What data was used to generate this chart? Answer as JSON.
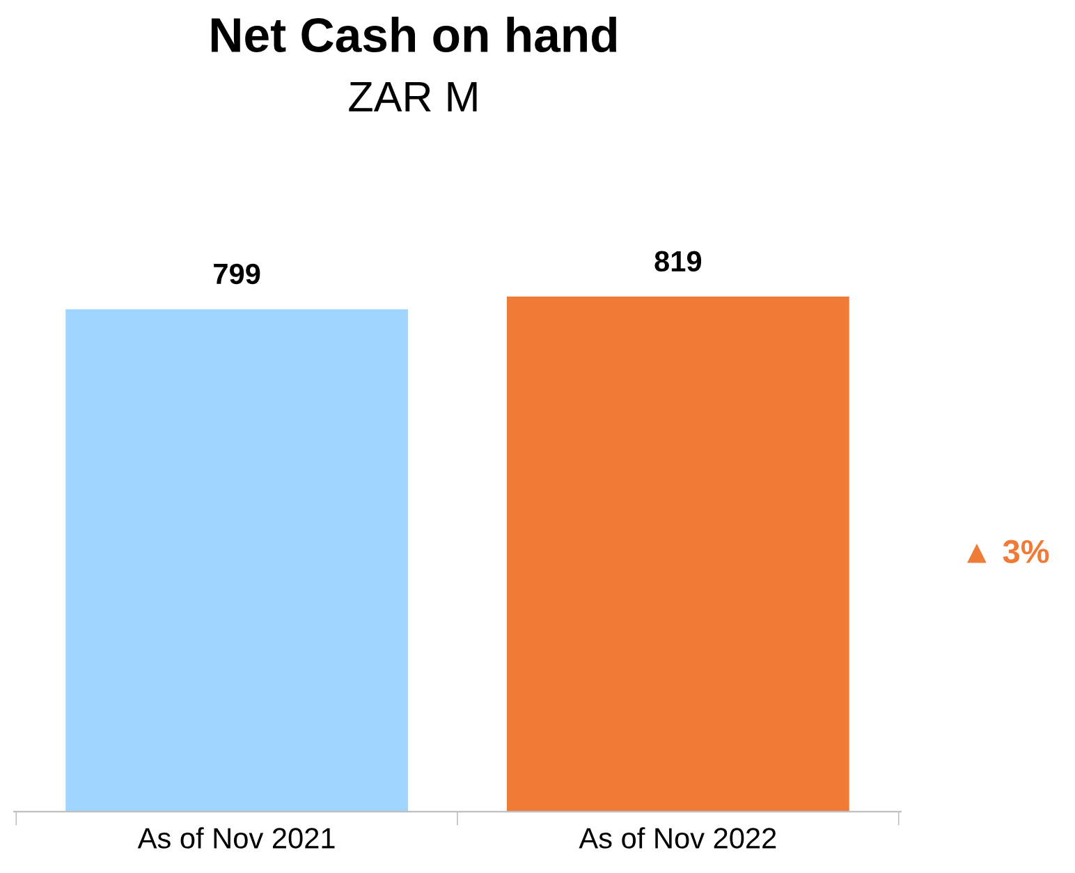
{
  "chart_data": {
    "type": "bar",
    "title": "Net Cash on hand",
    "subtitle": "ZAR M",
    "categories": [
      "As of Nov 2021",
      "As of Nov 2022"
    ],
    "values": [
      799,
      819
    ],
    "colors": [
      "#9fd5ff",
      "#f07b36"
    ],
    "data_labels": true,
    "grid": false,
    "legend": false,
    "tick_labels": "x",
    "annotations": [
      "▲ 3%"
    ]
  }
}
